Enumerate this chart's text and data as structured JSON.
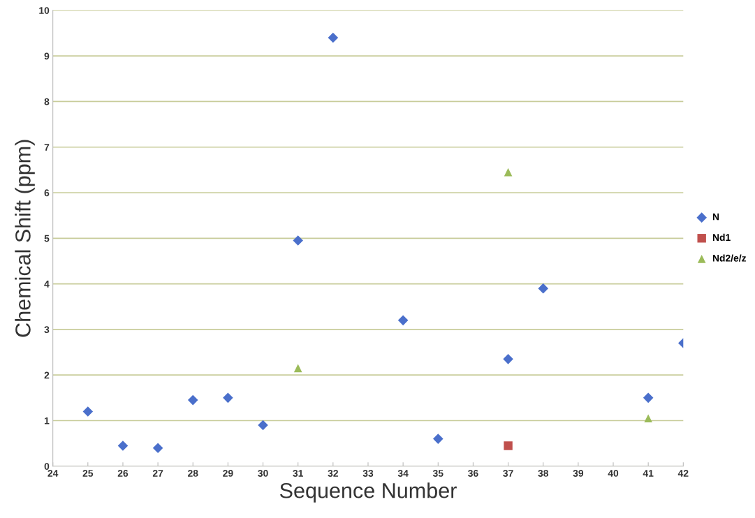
{
  "chart_data": {
    "type": "scatter",
    "xlabel": "Sequence Number",
    "ylabel": "Chemical Shift (ppm)",
    "xlim": [
      24,
      42
    ],
    "xticks": [
      24,
      25,
      26,
      27,
      28,
      29,
      30,
      31,
      32,
      33,
      34,
      35,
      36,
      37,
      38,
      39,
      40,
      41,
      42
    ],
    "ylim": [
      0,
      10
    ],
    "yticks": [
      0,
      1,
      2,
      3,
      4,
      5,
      6,
      7,
      8,
      9,
      10
    ],
    "grid": "y",
    "legend": "right",
    "series": [
      {
        "name": "N",
        "color": "#4a6fcb",
        "marker": "diamond",
        "x": [
          25,
          26,
          27,
          28,
          29,
          30,
          31,
          32,
          34,
          35,
          37,
          38,
          41,
          42
        ],
        "values": [
          1.2,
          0.45,
          0.4,
          1.45,
          1.5,
          0.9,
          4.95,
          9.4,
          3.2,
          0.6,
          2.35,
          3.9,
          1.5,
          2.7
        ]
      },
      {
        "name": "Nd1",
        "color": "#c0504d",
        "marker": "square",
        "x": [
          37
        ],
        "values": [
          0.45
        ]
      },
      {
        "name": "Nd2/e/z",
        "color": "#9bbb59",
        "marker": "triangle",
        "x": [
          31,
          37,
          41
        ],
        "values": [
          2.15,
          6.45,
          1.05
        ]
      }
    ]
  }
}
